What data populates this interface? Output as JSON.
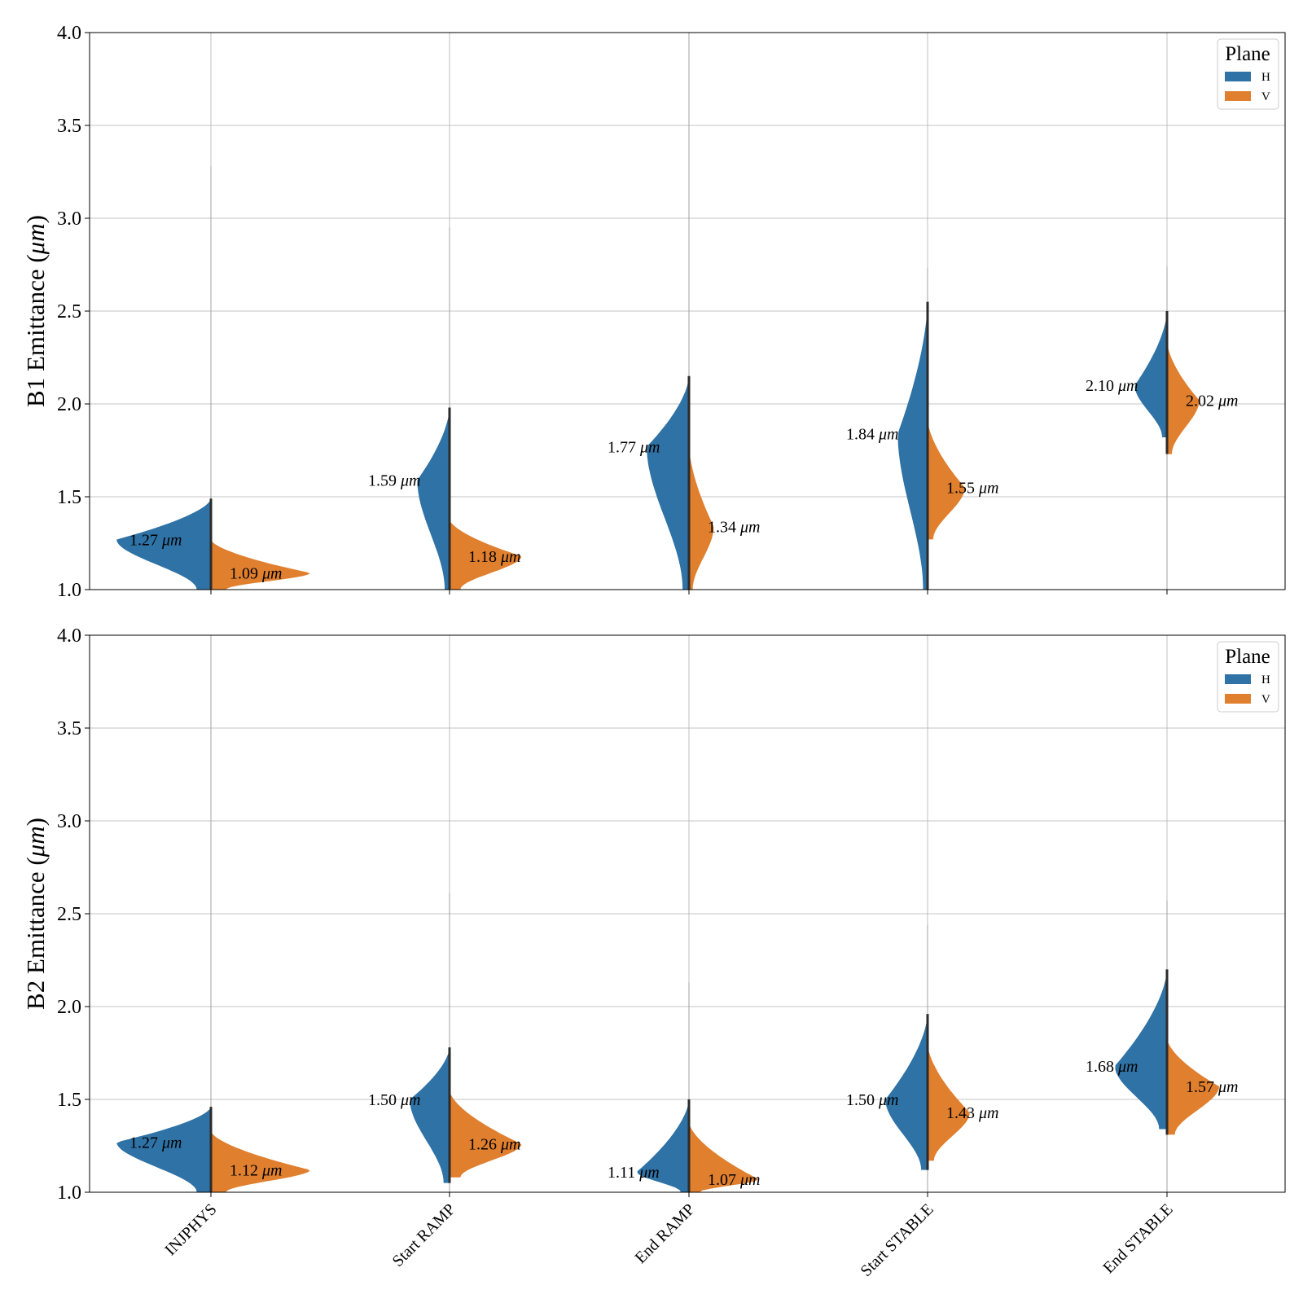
{
  "chart_data": [
    {
      "type": "violin",
      "split": true,
      "ylabel_prefix": "B1 Emittance (",
      "ylabel_unit": "μm",
      "ylabel_suffix": ")",
      "ylim": [
        1.0,
        4.0
      ],
      "yticks": [
        "1.0",
        "1.5",
        "2.0",
        "2.5",
        "3.0",
        "3.5",
        "4.0"
      ],
      "grid": true,
      "legend": {
        "title": "Plane",
        "placement": "top-right",
        "entries": [
          "H",
          "V"
        ]
      },
      "categories": [
        "INJPHYS",
        "Start RAMP",
        "End RAMP",
        "Start STABLE",
        "End STABLE"
      ],
      "series": [
        {
          "name": "H",
          "color": "#2f72a5",
          "medians": [
            1.27,
            1.59,
            1.77,
            1.84,
            2.1
          ],
          "labels": [
            "1.27",
            "1.59",
            "1.77",
            "1.84",
            "2.10"
          ],
          "ranges": [
            [
              1.0,
              1.49
            ],
            [
              1.0,
              1.98
            ],
            [
              1.0,
              2.15
            ],
            [
              1.0,
              2.55
            ],
            [
              1.82,
              2.5
            ]
          ],
          "widths": [
            0.38,
            0.13,
            0.17,
            0.12,
            0.13
          ]
        },
        {
          "name": "V",
          "color": "#e07f2e",
          "medians": [
            1.09,
            1.18,
            1.34,
            1.55,
            2.02
          ],
          "labels": [
            "1.09",
            "1.18",
            "1.34",
            "1.55",
            "2.02"
          ],
          "ranges": [
            [
              1.0,
              1.27
            ],
            [
              1.0,
              1.38
            ],
            [
              1.0,
              1.78
            ],
            [
              1.27,
              1.92
            ],
            [
              1.73,
              2.34
            ]
          ],
          "widths": [
            0.4,
            0.29,
            0.1,
            0.15,
            0.13
          ]
        }
      ],
      "whiskers": [
        3.28,
        2.95,
        4.0,
        2.73,
        2.74
      ]
    },
    {
      "type": "violin",
      "split": true,
      "ylabel_prefix": "B2 Emittance (",
      "ylabel_unit": "μm",
      "ylabel_suffix": ")",
      "ylim": [
        1.0,
        4.0
      ],
      "yticks": [
        "1.0",
        "1.5",
        "2.0",
        "2.5",
        "3.0",
        "3.5",
        "4.0"
      ],
      "grid": true,
      "legend": {
        "title": "Plane",
        "placement": "top-right",
        "entries": [
          "H",
          "V"
        ]
      },
      "categories": [
        "INJPHYS",
        "Start RAMP",
        "End RAMP",
        "Start STABLE",
        "End STABLE"
      ],
      "series": [
        {
          "name": "H",
          "color": "#2f72a5",
          "medians": [
            1.27,
            1.5,
            1.11,
            1.5,
            1.68
          ],
          "labels": [
            "1.27",
            "1.50",
            "1.11",
            "1.50",
            "1.68"
          ],
          "ranges": [
            [
              1.0,
              1.46
            ],
            [
              1.05,
              1.78
            ],
            [
              1.0,
              1.5
            ],
            [
              1.12,
              1.96
            ],
            [
              1.34,
              2.2
            ]
          ],
          "widths": [
            0.38,
            0.16,
            0.21,
            0.17,
            0.21
          ]
        },
        {
          "name": "V",
          "color": "#e07f2e",
          "medians": [
            1.12,
            1.26,
            1.07,
            1.43,
            1.57
          ],
          "labels": [
            "1.12",
            "1.26",
            "1.07",
            "1.43",
            "1.57"
          ],
          "ranges": [
            [
              1.0,
              1.33
            ],
            [
              1.08,
              1.55
            ],
            [
              1.0,
              1.38
            ],
            [
              1.17,
              1.8
            ],
            [
              1.31,
              1.83
            ]
          ],
          "widths": [
            0.4,
            0.29,
            0.28,
            0.17,
            0.21
          ]
        }
      ],
      "whiskers": [
        4.0,
        2.61,
        2.13,
        2.44,
        2.57
      ]
    }
  ]
}
